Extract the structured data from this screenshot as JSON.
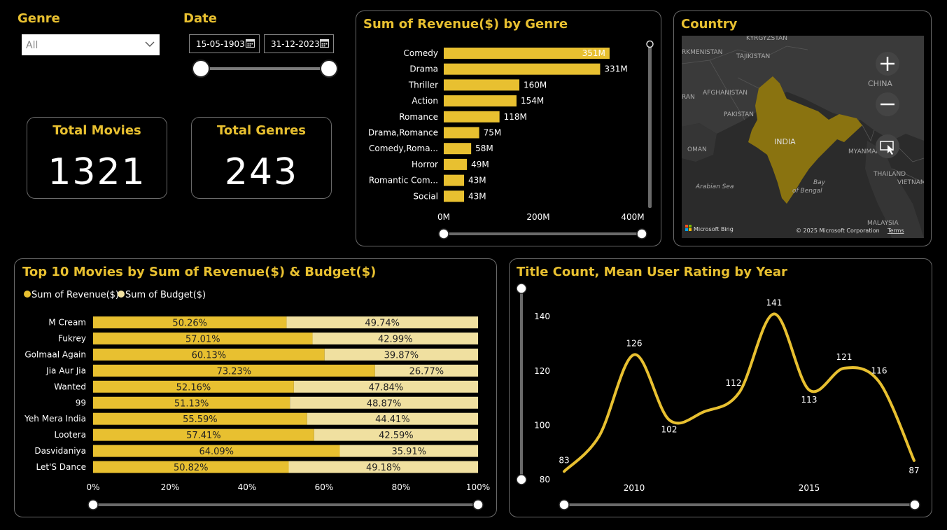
{
  "filters": {
    "genre_label": "Genre",
    "genre_value": "All",
    "date_label": "Date",
    "date_start": "15-05-1903",
    "date_end": "31-12-2023"
  },
  "kpis": {
    "total_movies_label": "Total Movies",
    "total_movies_value": "1321",
    "total_genres_label": "Total Genres",
    "total_genres_value": "243"
  },
  "map": {
    "title": "Country",
    "labels": [
      "KYRGYZSTAN",
      "RKMENISTAN",
      "TAJIKISTAN",
      "AFGHANISTAN",
      "CHINA",
      "RAN",
      "PAKISTAN",
      "INDIA",
      "OMAN",
      "MYANMAR",
      "Arabian Sea",
      "Bay",
      "of Bengal",
      "THAILAND",
      "VIETNAM",
      "MALAYSIA"
    ],
    "attribution_brand": "Microsoft Bing",
    "attribution_copyright": "© 2025 Microsoft Corporation",
    "attribution_terms": "Terms"
  },
  "colors": {
    "accent": "#e8c030",
    "budget": "#f0e0a0",
    "panel_border": "#6a6a6a"
  },
  "chart_data": [
    {
      "type": "bar",
      "title": "Sum of Revenue($) by Genre",
      "orientation": "horizontal",
      "categories": [
        "Comedy",
        "Drama",
        "Thriller",
        "Action",
        "Romance",
        "Drama,Romance",
        "Comedy,Roma...",
        "Horror",
        "Romantic Com...",
        "Social"
      ],
      "values": [
        351,
        331,
        160,
        154,
        118,
        75,
        58,
        49,
        43,
        43
      ],
      "data_labels": [
        "351M",
        "331M",
        "160M",
        "154M",
        "118M",
        "75M",
        "58M",
        "49M",
        "43M",
        "43M"
      ],
      "x_ticks": [
        "0M",
        "200M",
        "400M"
      ],
      "xlim": [
        0,
        400
      ]
    },
    {
      "type": "bar",
      "title": "Top 10 Movies by Sum of Revenue($) & Budget($)",
      "stacked": "100%",
      "orientation": "horizontal",
      "categories": [
        "M Cream",
        "Fukrey",
        "Golmaal Again",
        "Jia Aur Jia",
        "Wanted",
        "99",
        "Yeh Mera India",
        "Lootera",
        "Dasvidaniya",
        "Let'S Dance"
      ],
      "series": [
        {
          "name": "Sum of Revenue($)",
          "values": [
            50.26,
            57.01,
            60.13,
            73.23,
            52.16,
            51.13,
            55.59,
            57.41,
            64.09,
            50.82
          ],
          "labels": [
            "50.26%",
            "57.01%",
            "60.13%",
            "73.23%",
            "52.16%",
            "51.13%",
            "55.59%",
            "57.41%",
            "64.09%",
            "50.82%"
          ]
        },
        {
          "name": "Sum of Budget($)",
          "values": [
            49.74,
            42.99,
            39.87,
            26.77,
            47.84,
            48.87,
            44.41,
            42.59,
            35.91,
            49.18
          ],
          "labels": [
            "49.74%",
            "42.99%",
            "39.87%",
            "26.77%",
            "47.84%",
            "48.87%",
            "44.41%",
            "42.59%",
            "35.91%",
            "49.18%"
          ]
        }
      ],
      "x_ticks": [
        "0%",
        "20%",
        "40%",
        "60%",
        "80%",
        "100%"
      ],
      "legend": "top-left"
    },
    {
      "type": "line",
      "title": "Title Count, Mean User Rating by Year",
      "x": [
        2008,
        2009,
        2010,
        2011,
        2012,
        2013,
        2014,
        2015,
        2016,
        2017,
        2018
      ],
      "y": [
        83,
        null,
        126,
        102,
        null,
        112,
        141,
        113,
        121,
        116,
        87
      ],
      "point_labels": [
        "83",
        "",
        "126",
        "102",
        "",
        "112",
        "141",
        "113",
        "121",
        "116",
        "87"
      ],
      "y_ticks": [
        "80",
        "100",
        "120",
        "140"
      ],
      "x_ticks": [
        "2010",
        "2015"
      ],
      "ylim": [
        80,
        150
      ]
    }
  ]
}
